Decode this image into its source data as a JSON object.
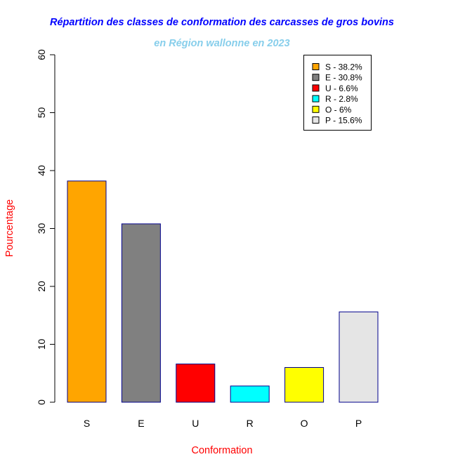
{
  "chart_data": {
    "type": "bar",
    "title": "Répartition des classes de conformation des carcasses de gros bovins",
    "subtitle": "en Région wallonne en 2023",
    "xlabel": "Conformation",
    "ylabel": "Pourcentage",
    "categories": [
      "S",
      "E",
      "U",
      "R",
      "O",
      "P"
    ],
    "values": [
      38.2,
      30.8,
      6.6,
      2.8,
      6,
      15.6
    ],
    "colors": [
      "#FFA500",
      "#808080",
      "#FF0000",
      "#00FFFF",
      "#FFFF00",
      "#E5E5E5"
    ],
    "bar_border_color": "#00008B",
    "ylim": [
      0,
      60
    ],
    "yticks": [
      "0",
      "10",
      "20",
      "30",
      "40",
      "50",
      "60"
    ],
    "grid": false,
    "legend_position": "top-right",
    "legend": [
      "S - 38.2%",
      "E - 30.8%",
      "U - 6.6%",
      "R - 2.8%",
      "O - 6%",
      "P - 15.6%"
    ],
    "title_color": "#0000FF",
    "subtitle_color": "#87CEEB",
    "axis_label_color": "#FF0000"
  }
}
